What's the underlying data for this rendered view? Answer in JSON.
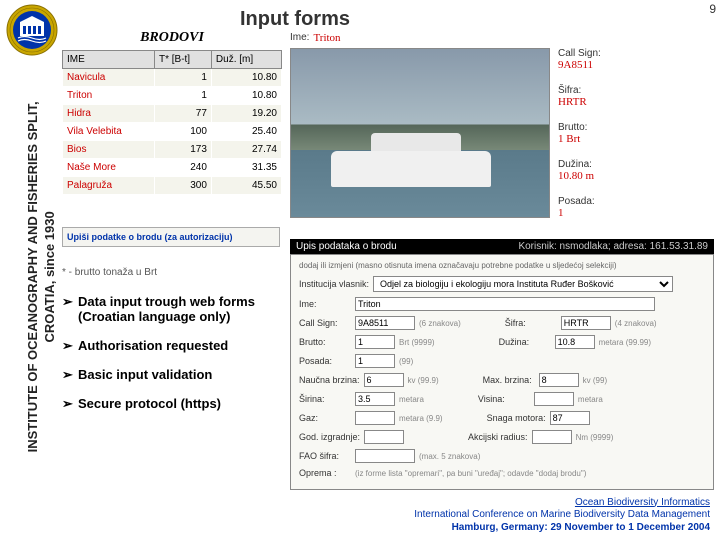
{
  "slide_number": "9",
  "title": "Input forms",
  "sidebar": {
    "line1": "INSTITUTE OF OCEANOGRAPHY AND FISHERIES  SPLIT,",
    "line2": "CROATIA,  since 1930"
  },
  "logo": {
    "outer_color": "#c9a600",
    "inner_color": "#0033aa",
    "building_color": "#ffffff"
  },
  "brodovi": {
    "title": "BRODOVI",
    "columns": [
      "IME",
      "T* [B-t]",
      "Duž. [m]"
    ],
    "rows": [
      [
        "Navicula",
        "1",
        "10.80"
      ],
      [
        "Triton",
        "1",
        "10.80"
      ],
      [
        "Hidra",
        "77",
        "19.20"
      ],
      [
        "Vila Velebita",
        "100",
        "25.40"
      ],
      [
        "Bios",
        "173",
        "27.74"
      ],
      [
        "Naše More",
        "240",
        "31.35"
      ],
      [
        "Palagruža",
        "300",
        "45.50"
      ]
    ]
  },
  "footnote": "*  - brutto tonaža u Brt",
  "auth_box": {
    "label": "Upiši podatke o brodu (za",
    "label2": "autorizaciju)"
  },
  "bullets": [
    "Data input trough web forms (Croatian language only)",
    "Authorisation requested",
    "Basic input validation",
    "Secure protocol (https)"
  ],
  "detail": {
    "ime_label": "Ime:",
    "ime": "Triton",
    "side": [
      {
        "label": "Call Sign:",
        "value": "9A8511"
      },
      {
        "label": "Šifra:",
        "value": "HRTR"
      },
      {
        "label": "Brutto:",
        "value": "1 Brt"
      },
      {
        "label": "Dužina:",
        "value": "10.80 m"
      },
      {
        "label": "Posada:",
        "value": "1"
      }
    ]
  },
  "form_bar": {
    "left": "Upis podataka o brodu",
    "right": "Korisnik: nsmodlaka; adresa: 161.53.31.89"
  },
  "form": {
    "note": "dodaj ili izmjeni (masno otisnuta imena označavaju potrebne podatke u sljedećoj selekciji)",
    "institucija_label": "Institucija vlasnik:",
    "institucija_value": "Odjel za biologiju i ekologiju mora Instituta Ruđer Bošković",
    "ime_label": "Ime:",
    "ime_value": "Triton",
    "callsign_label": "Call Sign:",
    "callsign_value": "9A8511",
    "callsign_hint": "(6 znakova)",
    "sifra_label": "Šifra:",
    "sifra_value": "HRTR",
    "sifra_hint": "(4 znakova)",
    "brutto_label": "Brutto:",
    "brutto_value": "1",
    "brutto_hint": "Brt (9999)",
    "duzina_label": "Dužina:",
    "duzina_value": "10.8",
    "duzina_hint": "metara (99.99)",
    "posada_label": "Posada:",
    "posada_value": "1",
    "posada_hint": "(99)",
    "naucna_label": "Naučna brzina:",
    "naucna_value": "6",
    "naucna_hint": "kv (99.9)",
    "max_label": "Max. brzina:",
    "max_value": "8",
    "max_hint": "kv (99)",
    "sirina_label": "Širina:",
    "sirina_value": "3.5",
    "sirina_hint": "metara",
    "visina_label": "Visina:",
    "visina_value": "",
    "visina_hint": "metara",
    "gaz_label": "Gaz:",
    "gaz_value": "",
    "gaz_hint": "metara (9.9)",
    "snaga_label": "Snaga motora:",
    "snaga_value": "87",
    "snaga_hint": "",
    "god_label": "God. izgradnje:",
    "god_value": "",
    "god_hint": "",
    "akc_label": "Akcijski radius:",
    "akc_value": "",
    "akc_hint": "Nm (9999)",
    "fao_label": "FAO šifra:",
    "fao_value": "",
    "fao_hint": "(max. 5 znakova)",
    "oprema_label": "Oprema :",
    "oprema_hint": "(iz forme lista \"opremari\", pa buni \"uređaj\"; odavde \"dodaj brodu\")"
  },
  "footer": {
    "line1": "Ocean Biodiversity Informatics",
    "line2": "International Conference on Marine Biodiversity Data Management",
    "line3": "Hamburg, Germany: 29 November to 1 December 2004"
  },
  "colors": {
    "accent_red": "#c00020",
    "link_blue": "#0033aa",
    "header_gray": "#e0e0e0",
    "row_alt": "#f4f4ec"
  }
}
